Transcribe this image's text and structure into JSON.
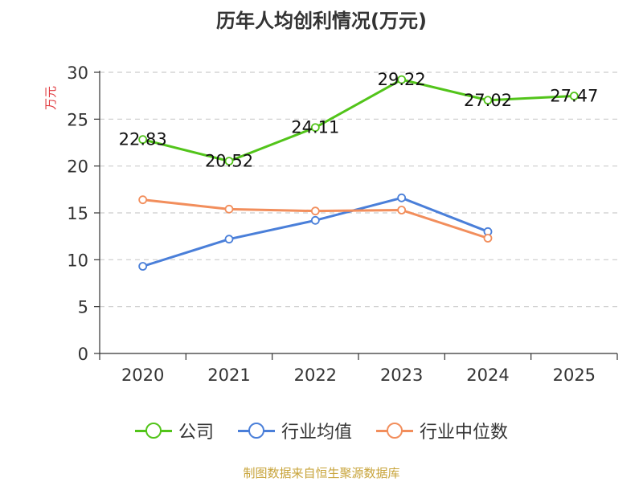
{
  "chart_data": {
    "type": "line",
    "title": "历年人均创利情况(万元)",
    "ylabel": "万元",
    "xlabel": "",
    "categories": [
      "2020",
      "2021",
      "2022",
      "2023",
      "2024",
      "2025"
    ],
    "ylim": [
      0,
      30
    ],
    "yticks": [
      0,
      5,
      10,
      15,
      20,
      25,
      30
    ],
    "grid": true,
    "legend_position": "bottom",
    "series": [
      {
        "name": "公司",
        "color": "#52c41a",
        "values": [
          22.83,
          20.52,
          24.11,
          29.22,
          27.02,
          27.47
        ],
        "labels": [
          "22.83",
          "20.52",
          "24.11",
          "29.22",
          "27.02",
          "27.47"
        ]
      },
      {
        "name": "行业均值",
        "color": "#4a7fd9",
        "values": [
          9.3,
          12.2,
          14.2,
          16.6,
          13.0,
          null
        ]
      },
      {
        "name": "行业中位数",
        "color": "#f28e5c",
        "values": [
          16.4,
          15.4,
          15.2,
          15.3,
          12.3,
          null
        ]
      }
    ]
  },
  "source": "制图数据来自恒生聚源数据库"
}
